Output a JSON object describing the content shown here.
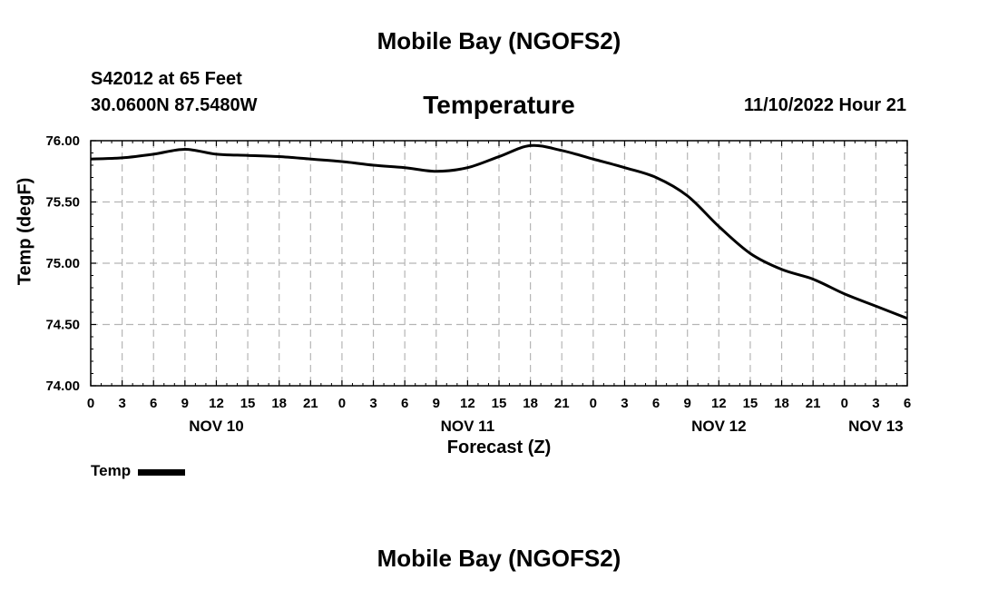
{
  "header": {
    "main_title": "Mobile Bay (NGOFS2)",
    "station": "S42012 at 65 Feet",
    "coords": "30.0600N  87.5480W",
    "forecast_time": "11/10/2022 Hour 21",
    "bottom_title": "Mobile Bay (NGOFS2)"
  },
  "chart_data": {
    "type": "line",
    "title": "Temperature",
    "xlabel": "Forecast (Z)",
    "ylabel": "Temp (degF)",
    "ylim": [
      74.0,
      76.0
    ],
    "yticks": [
      "74.00",
      "74.50",
      "75.00",
      "75.50",
      "76.00"
    ],
    "xlim_hours": [
      0,
      78
    ],
    "xticks": [
      "0",
      "3",
      "6",
      "9",
      "12",
      "15",
      "18",
      "21",
      "0",
      "3",
      "6",
      "9",
      "12",
      "15",
      "18",
      "21",
      "0",
      "3",
      "6",
      "9",
      "12",
      "15",
      "18",
      "21",
      "0",
      "3",
      "6"
    ],
    "day_labels": [
      {
        "label": "NOV 10",
        "hour": 12
      },
      {
        "label": "NOV 11",
        "hour": 36
      },
      {
        "label": "NOV 12",
        "hour": 60
      },
      {
        "label": "NOV 13",
        "hour": 75
      }
    ],
    "grid": true,
    "legend": {
      "label": "Temp",
      "placement": "bottom-left"
    },
    "series": [
      {
        "name": "Temp",
        "x_hours": [
          0,
          3,
          6,
          9,
          12,
          15,
          18,
          21,
          24,
          27,
          30,
          33,
          36,
          39,
          42,
          45,
          48,
          51,
          54,
          57,
          60,
          63,
          66,
          69,
          72,
          75,
          78
        ],
        "y": [
          75.85,
          75.86,
          75.89,
          75.93,
          75.89,
          75.88,
          75.87,
          75.85,
          75.83,
          75.8,
          75.78,
          75.75,
          75.78,
          75.87,
          75.96,
          75.92,
          75.85,
          75.78,
          75.7,
          75.55,
          75.3,
          75.08,
          74.95,
          74.87,
          74.75,
          74.65,
          74.55
        ]
      }
    ]
  }
}
